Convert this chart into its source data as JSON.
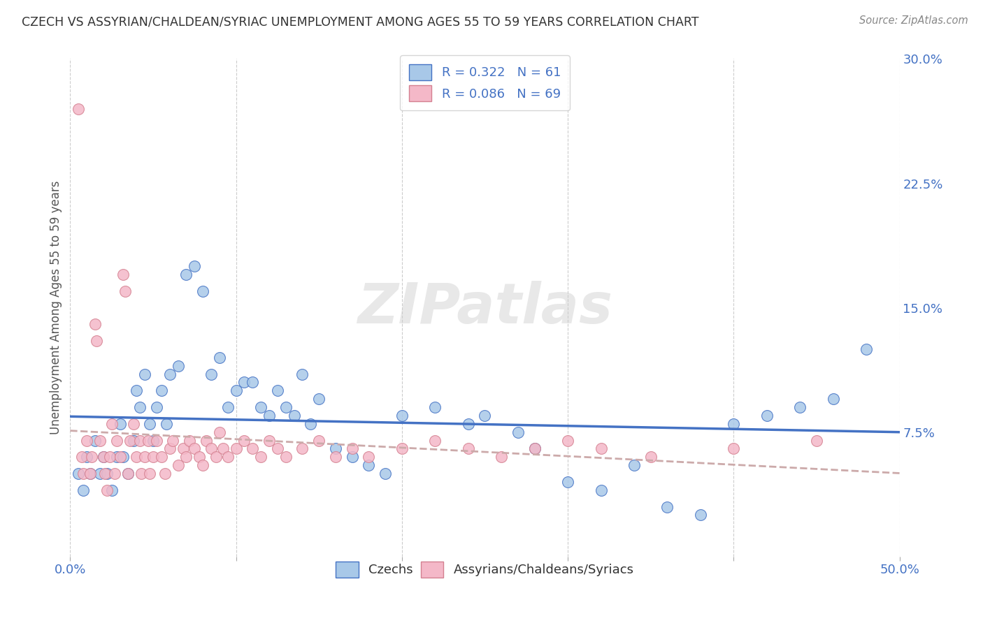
{
  "title": "CZECH VS ASSYRIAN/CHALDEAN/SYRIAC UNEMPLOYMENT AMONG AGES 55 TO 59 YEARS CORRELATION CHART",
  "source": "Source: ZipAtlas.com",
  "ylabel": "Unemployment Among Ages 55 to 59 years",
  "xlim": [
    0,
    0.5
  ],
  "ylim": [
    0,
    0.3
  ],
  "xticks": [
    0.0,
    0.1,
    0.2,
    0.3,
    0.4,
    0.5
  ],
  "xticklabels": [
    "0.0%",
    "",
    "",
    "",
    "",
    "50.0%"
  ],
  "yticks": [
    0.0,
    0.075,
    0.15,
    0.225,
    0.3
  ],
  "yticklabels": [
    "",
    "7.5%",
    "15.0%",
    "22.5%",
    "30.0%"
  ],
  "czechs_R": 0.322,
  "czechs_N": 61,
  "assyrians_R": 0.086,
  "assyrians_N": 69,
  "blue_color": "#a8c8e8",
  "pink_color": "#f4b8c8",
  "blue_line_color": "#4472c4",
  "pink_line_color": "#d4a0b0",
  "legend_label_blue": "Czechs",
  "legend_label_pink": "Assyrians/Chaldeans/Syriacs",
  "watermark": "ZIPatlas",
  "czechs_x": [
    0.005,
    0.008,
    0.01,
    0.012,
    0.015,
    0.018,
    0.02,
    0.022,
    0.025,
    0.028,
    0.03,
    0.032,
    0.035,
    0.038,
    0.04,
    0.042,
    0.045,
    0.048,
    0.05,
    0.052,
    0.055,
    0.058,
    0.06,
    0.065,
    0.07,
    0.075,
    0.08,
    0.085,
    0.09,
    0.095,
    0.1,
    0.105,
    0.11,
    0.115,
    0.12,
    0.125,
    0.13,
    0.135,
    0.14,
    0.145,
    0.15,
    0.16,
    0.17,
    0.18,
    0.19,
    0.2,
    0.22,
    0.24,
    0.25,
    0.27,
    0.28,
    0.3,
    0.32,
    0.34,
    0.36,
    0.38,
    0.4,
    0.42,
    0.44,
    0.46,
    0.48
  ],
  "czechs_y": [
    0.05,
    0.04,
    0.06,
    0.05,
    0.07,
    0.05,
    0.06,
    0.05,
    0.04,
    0.06,
    0.08,
    0.06,
    0.05,
    0.07,
    0.1,
    0.09,
    0.11,
    0.08,
    0.07,
    0.09,
    0.1,
    0.08,
    0.11,
    0.115,
    0.17,
    0.175,
    0.16,
    0.11,
    0.12,
    0.09,
    0.1,
    0.105,
    0.105,
    0.09,
    0.085,
    0.1,
    0.09,
    0.085,
    0.11,
    0.08,
    0.095,
    0.065,
    0.06,
    0.055,
    0.05,
    0.085,
    0.09,
    0.08,
    0.085,
    0.075,
    0.065,
    0.045,
    0.04,
    0.055,
    0.03,
    0.025,
    0.08,
    0.085,
    0.09,
    0.095,
    0.125
  ],
  "assyrians_x": [
    0.005,
    0.007,
    0.008,
    0.01,
    0.012,
    0.013,
    0.015,
    0.016,
    0.018,
    0.02,
    0.021,
    0.022,
    0.024,
    0.025,
    0.027,
    0.028,
    0.03,
    0.032,
    0.033,
    0.035,
    0.036,
    0.038,
    0.04,
    0.042,
    0.043,
    0.045,
    0.047,
    0.048,
    0.05,
    0.052,
    0.055,
    0.057,
    0.06,
    0.062,
    0.065,
    0.068,
    0.07,
    0.072,
    0.075,
    0.078,
    0.08,
    0.082,
    0.085,
    0.088,
    0.09,
    0.092,
    0.095,
    0.1,
    0.105,
    0.11,
    0.115,
    0.12,
    0.125,
    0.13,
    0.14,
    0.15,
    0.16,
    0.17,
    0.18,
    0.2,
    0.22,
    0.24,
    0.26,
    0.28,
    0.3,
    0.32,
    0.35,
    0.4,
    0.45
  ],
  "assyrians_y": [
    0.27,
    0.06,
    0.05,
    0.07,
    0.05,
    0.06,
    0.14,
    0.13,
    0.07,
    0.06,
    0.05,
    0.04,
    0.06,
    0.08,
    0.05,
    0.07,
    0.06,
    0.17,
    0.16,
    0.05,
    0.07,
    0.08,
    0.06,
    0.07,
    0.05,
    0.06,
    0.07,
    0.05,
    0.06,
    0.07,
    0.06,
    0.05,
    0.065,
    0.07,
    0.055,
    0.065,
    0.06,
    0.07,
    0.065,
    0.06,
    0.055,
    0.07,
    0.065,
    0.06,
    0.075,
    0.065,
    0.06,
    0.065,
    0.07,
    0.065,
    0.06,
    0.07,
    0.065,
    0.06,
    0.065,
    0.07,
    0.06,
    0.065,
    0.06,
    0.065,
    0.07,
    0.065,
    0.06,
    0.065,
    0.07,
    0.065,
    0.06,
    0.065,
    0.07
  ]
}
